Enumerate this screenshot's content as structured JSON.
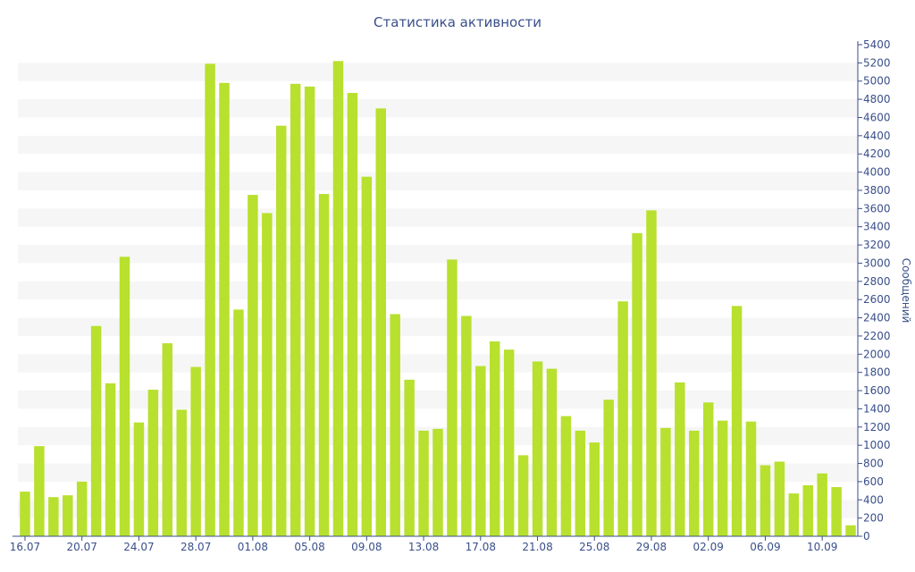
{
  "chart_data": {
    "type": "bar",
    "title": "Статистика активности",
    "ylabel": "Сообщений",
    "xlabel": "",
    "ylim": [
      0,
      5400
    ],
    "y_ticks": [
      0,
      200,
      400,
      600,
      800,
      1000,
      1200,
      1400,
      1600,
      1800,
      2000,
      2200,
      2400,
      2600,
      2800,
      3000,
      3200,
      3400,
      3600,
      3800,
      4000,
      4200,
      4400,
      4600,
      4800,
      5000,
      5200,
      5400
    ],
    "x_tick_labels": [
      "16.07",
      "20.07",
      "24.07",
      "28.07",
      "01.08",
      "05.08",
      "09.08",
      "13.08",
      "17.08",
      "21.08",
      "25.08",
      "29.08",
      "02.09",
      "06.09",
      "10.09"
    ],
    "x_tick_every": 4,
    "y_axis_position": "right",
    "grid": "alternating horizontal bands",
    "colors": {
      "bar": "#b8e02e",
      "band": "#f6f6f6",
      "text": "#3a4f8a",
      "axis": "#3a4f8a"
    },
    "values": [
      490,
      990,
      430,
      450,
      600,
      2310,
      1680,
      3070,
      1250,
      1610,
      2120,
      1390,
      1860,
      5190,
      4980,
      2490,
      3750,
      3550,
      4510,
      4970,
      4940,
      3760,
      5220,
      4870,
      3950,
      4700,
      2440,
      1720,
      1160,
      1180,
      3040,
      2420,
      1870,
      2140,
      2050,
      890,
      1920,
      1840,
      1320,
      1160,
      1030,
      1500,
      2580,
      3330,
      3580,
      1190,
      1690,
      1160,
      1470,
      1270,
      2530,
      1260,
      780,
      820,
      470,
      560,
      690,
      540,
      120
    ]
  }
}
